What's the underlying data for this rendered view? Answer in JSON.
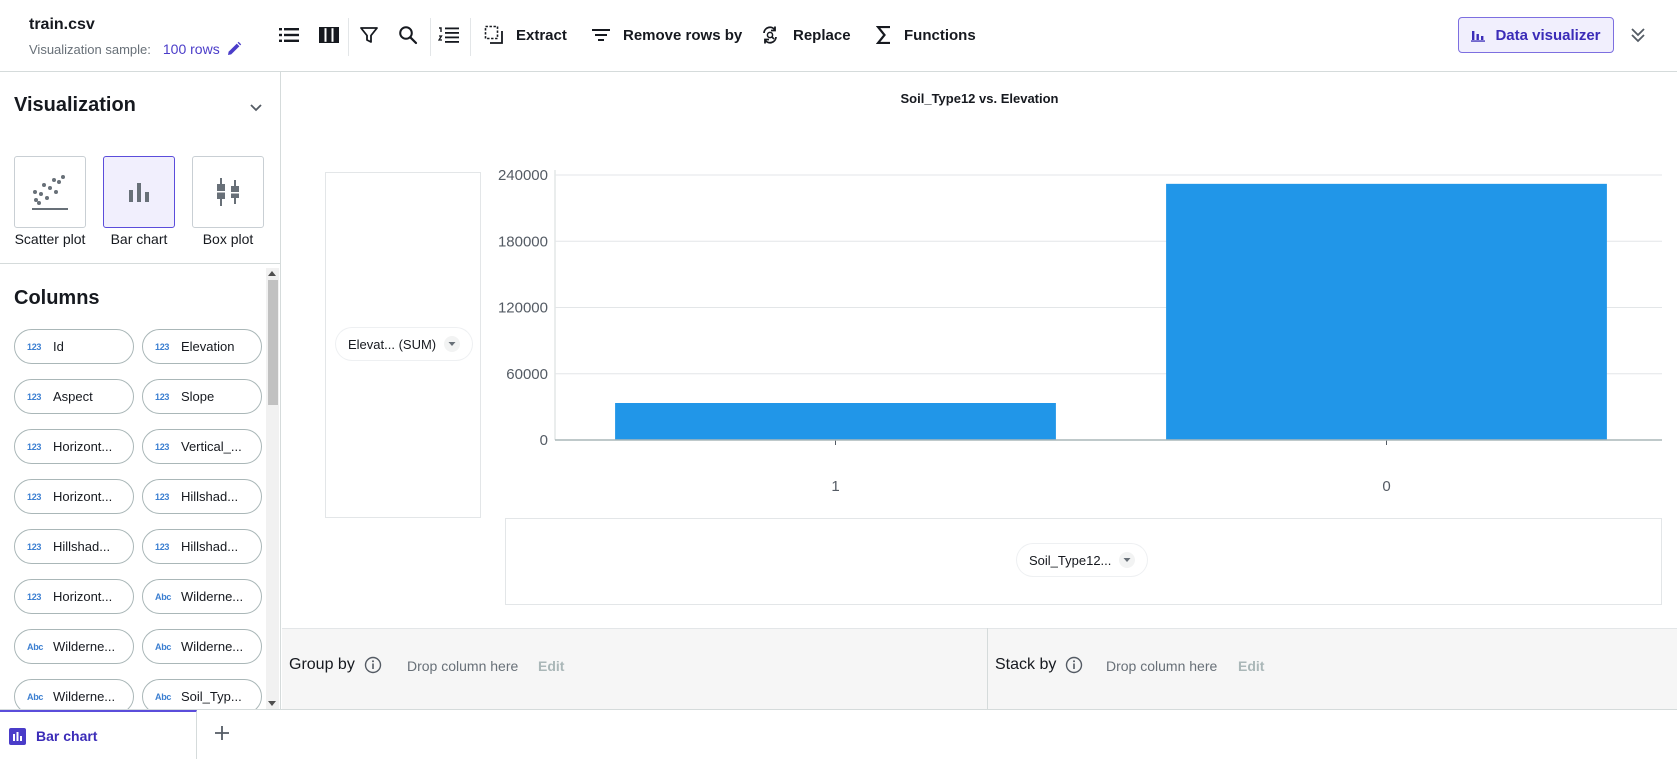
{
  "header": {
    "file_title": "train.csv",
    "sample_label": "Visualization sample:",
    "sample_rows": "100 rows",
    "toolbar_icons": [
      "list-view-icon",
      "columns-view-icon",
      "filter-icon",
      "search-icon",
      "numbered-list-icon"
    ],
    "actions": {
      "extract": "Extract",
      "remove_rows": "Remove rows by",
      "replace": "Replace",
      "functions": "Functions"
    },
    "data_visualizer": "Data visualizer"
  },
  "sidebar": {
    "visualization_heading": "Visualization",
    "chart_types": [
      {
        "label": "Scatter plot",
        "icon": "scatter-plot-icon"
      },
      {
        "label": "Bar chart",
        "icon": "bar-chart-icon",
        "active": true
      },
      {
        "label": "Box plot",
        "icon": "box-plot-icon"
      }
    ],
    "columns_heading": "Columns",
    "columns": [
      {
        "type": "123",
        "name": "Id"
      },
      {
        "type": "123",
        "name": "Elevation"
      },
      {
        "type": "123",
        "name": "Aspect"
      },
      {
        "type": "123",
        "name": "Slope"
      },
      {
        "type": "123",
        "name": "Horizont..."
      },
      {
        "type": "123",
        "name": "Vertical_..."
      },
      {
        "type": "123",
        "name": "Horizont..."
      },
      {
        "type": "123",
        "name": "Hillshad..."
      },
      {
        "type": "123",
        "name": "Hillshad..."
      },
      {
        "type": "123",
        "name": "Hillshad..."
      },
      {
        "type": "123",
        "name": "Horizont..."
      },
      {
        "type": "Abc",
        "name": "Wilderne..."
      },
      {
        "type": "Abc",
        "name": "Wilderne..."
      },
      {
        "type": "Abc",
        "name": "Wilderne..."
      },
      {
        "type": "Abc",
        "name": "Wilderne..."
      },
      {
        "type": "Abc",
        "name": "Soil_Typ..."
      }
    ]
  },
  "chart_title": "Soil_Type12 vs. Elevation",
  "y_field": "Elevat... (SUM)",
  "x_field": "Soil_Type12...",
  "chart_data": {
    "type": "bar",
    "title": "Soil_Type12 vs. Elevation",
    "categories": [
      "1",
      "0"
    ],
    "values": [
      33500,
      232000
    ],
    "ylim": [
      0,
      240000
    ],
    "yticks": [
      0,
      60000,
      120000,
      180000,
      240000
    ],
    "grid": true,
    "bar_color": "#2196e8"
  },
  "group_by": {
    "label": "Group by",
    "drop": "Drop column here",
    "edit": "Edit"
  },
  "stack_by": {
    "label": "Stack by",
    "drop": "Drop column here",
    "edit": "Edit"
  },
  "tabs": [
    {
      "label": "Bar chart",
      "active": true
    }
  ],
  "colors": {
    "accent": "#4a3cc9",
    "bar": "#2196e8"
  }
}
